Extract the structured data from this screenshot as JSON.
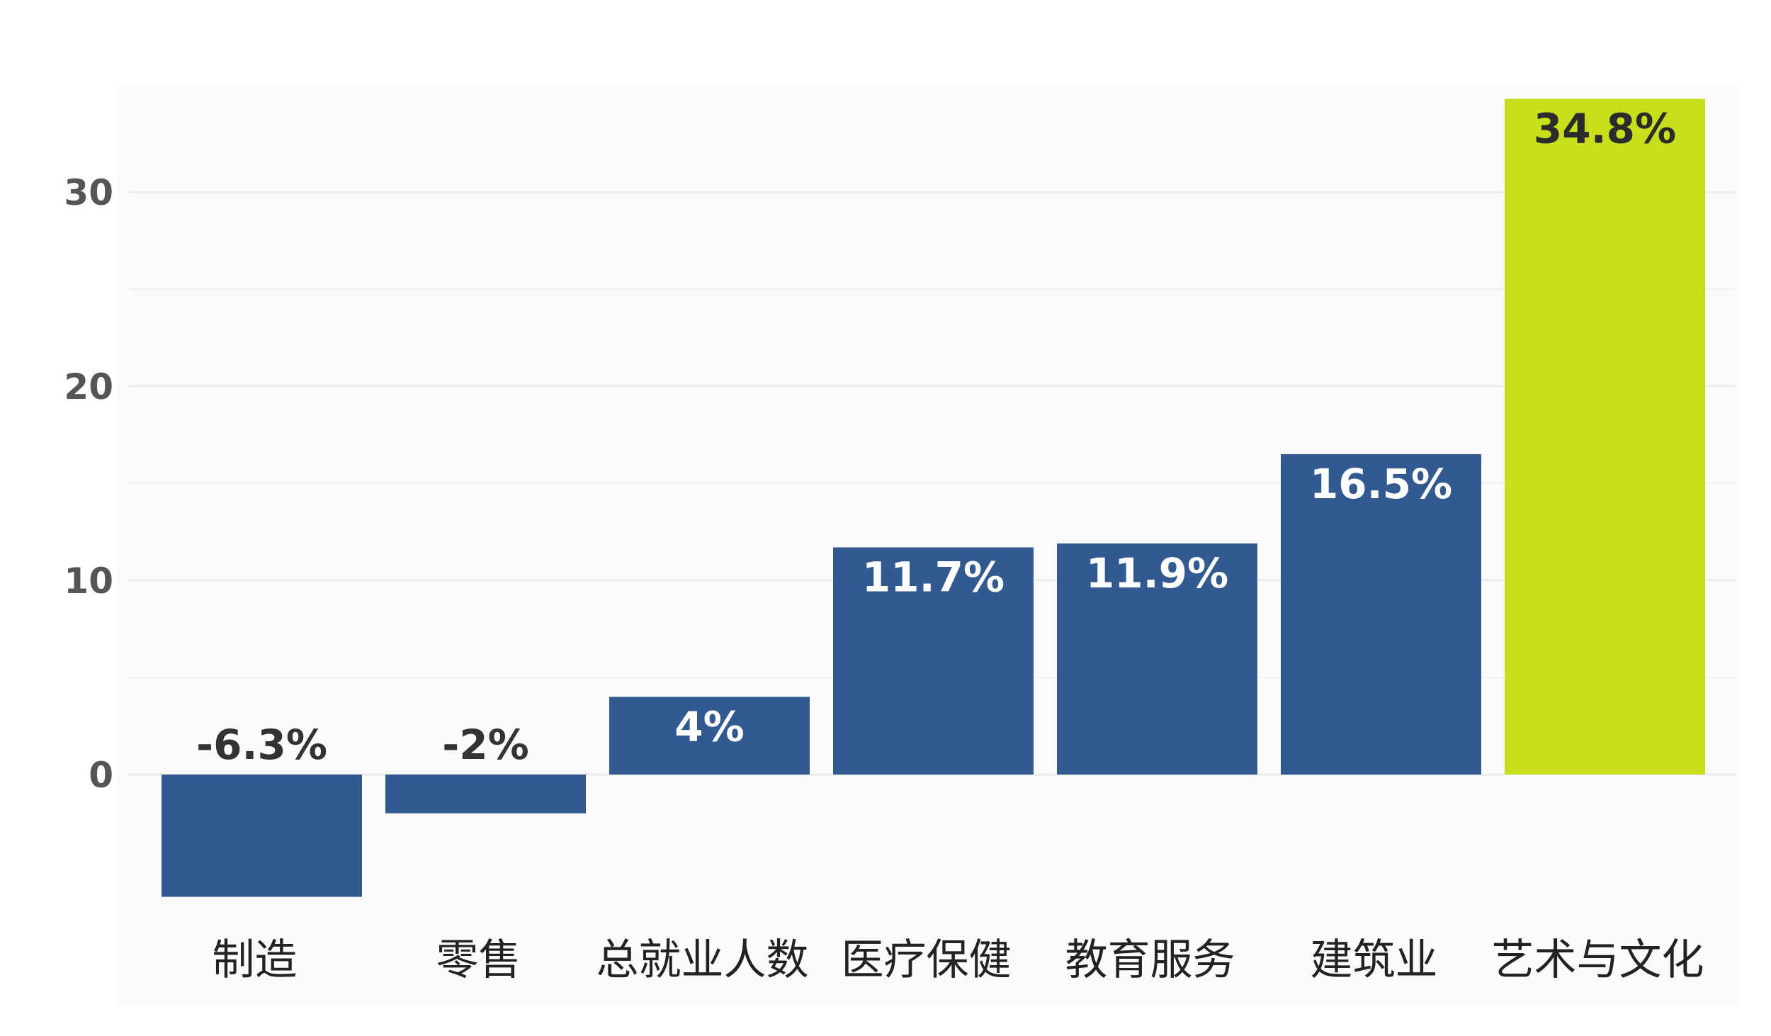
{
  "chart_data": {
    "type": "bar",
    "categories": [
      "制造",
      "零售",
      "总就业人数",
      "医疗保健",
      "教育服务",
      "建筑业",
      "艺术与文化"
    ],
    "values": [
      -6.3,
      -2,
      4,
      11.7,
      11.9,
      16.5,
      34.8
    ],
    "data_labels": [
      "-6.3%",
      "-2%",
      "4%",
      "11.7%",
      "11.9%",
      "16.5%",
      "34.8%"
    ],
    "y_ticks": [
      0,
      10,
      20,
      30
    ],
    "y_tick_labels": [
      "0",
      "10",
      "20",
      "30"
    ],
    "ylim": [
      -8,
      35
    ],
    "grid": true,
    "title": "",
    "xlabel": "",
    "ylabel": "",
    "colors": {
      "bar": "#325a91",
      "highlight_bar": "#c8e01c",
      "label_on_bar": "#ffffff",
      "label_above_bar": "#333333",
      "label_on_highlight": "#2b2b2b",
      "grid": "#ececec",
      "plot_background": "#fbfbfb"
    }
  }
}
